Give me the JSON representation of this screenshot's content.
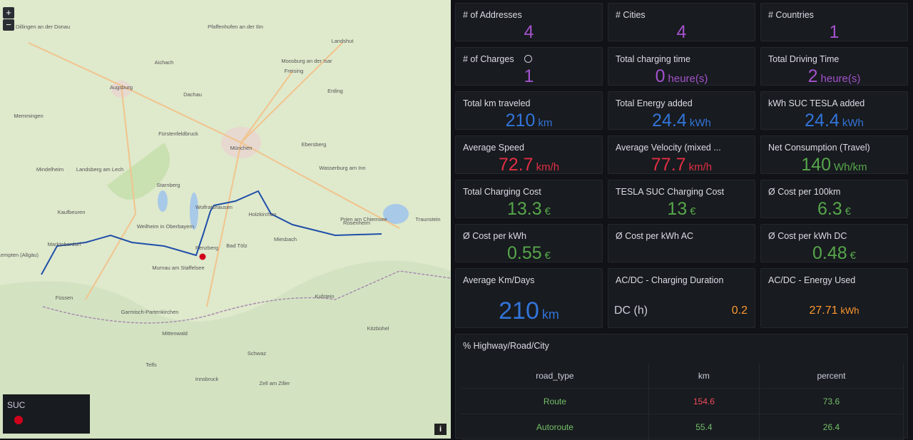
{
  "map": {
    "zoom_in": "+",
    "zoom_out": "−",
    "legend_title": "SUC",
    "info": "i",
    "labels": [
      "Dillingen an der Donau",
      "Augsburg",
      "Aichach",
      "Pfaffenhofen an der Ilm",
      "Landshut",
      "Moosburg an der Isar",
      "Freising",
      "Erding",
      "Dachau",
      "Fürstenfeldbruck",
      "München",
      "Ebersberg",
      "Wasserburg am Inn",
      "Mindelheim",
      "Landsberg am Lech",
      "Kaufbeuren",
      "Marktoberdorf",
      "Starnberg",
      "Weilheim in Oberbayern",
      "Wolfratshausen",
      "Holzkirchen",
      "Rosenheim",
      "Prien am Chiemsee",
      "Bad Tölz",
      "Miesbach",
      "Penzberg",
      "Kempten (Allgäu)",
      "Füssen",
      "Murnau am Staffelsee",
      "Garmisch-Partenkirchen",
      "Mittenwald",
      "Kufstein",
      "Innsbruck",
      "Schwaz",
      "Telfs",
      "Zell am Ziller",
      "Kitzbühel",
      "Memmingen",
      "Traunstein"
    ]
  },
  "stats": [
    {
      "title": "# of Addresses",
      "value": 4,
      "color": "#a352cc"
    },
    {
      "title": "# Cities",
      "value": 4,
      "color": "#a352cc"
    },
    {
      "title": "# Countries",
      "value": 1,
      "color": "#a352cc"
    },
    {
      "title": "# of Charges",
      "value": 1,
      "color": "#a352cc"
    },
    {
      "title": "Total charging time",
      "value": 0,
      "unit": "heure(s)",
      "color": "#a352cc"
    },
    {
      "title": "Total Driving Time",
      "value": 2,
      "unit": "heure(s)",
      "color": "#a352cc"
    },
    {
      "title": "Total km traveled",
      "value": 210,
      "unit": "km",
      "color": "#3274d9"
    },
    {
      "title": "Total Energy added",
      "value": 24.4,
      "unit": "kWh",
      "color": "#3274d9"
    },
    {
      "title": "kWh SUC TESLA added",
      "value": 24.4,
      "unit": "kWh",
      "color": "#3274d9"
    },
    {
      "title": "Average Speed",
      "value": 72.7,
      "unit": "km/h",
      "color": "#e02f44"
    },
    {
      "title": "Average Velocity (mixed ...",
      "value": 77.7,
      "unit": "km/h",
      "color": "#e02f44"
    },
    {
      "title": "Net Consumption (Travel)",
      "value": 140,
      "unit": "Wh/km",
      "color": "#56a64b"
    },
    {
      "title": "Total Charging Cost",
      "value": 13.3,
      "unit": "€",
      "color": "#56a64b"
    },
    {
      "title": "TESLA SUC Charging Cost",
      "value": 13,
      "unit": "€",
      "color": "#56a64b"
    },
    {
      "title": "Ø Cost per 100km",
      "value": 6.3,
      "unit": "€",
      "color": "#56a64b"
    },
    {
      "title": "Ø Cost per kWh",
      "value": 0.55,
      "unit": "€",
      "color": "#56a64b"
    },
    {
      "title": "Ø Cost per kWh AC"
    },
    {
      "title": "Ø Cost per kWh DC",
      "value": 0.48,
      "unit": "€",
      "color": "#56a64b"
    },
    {
      "title": "Average Km/Days",
      "value": 210,
      "unit": "km",
      "color": "#3274d9"
    },
    {
      "title": "AC/DC - Charging Duration",
      "label": "DC (h)",
      "value": 0.2,
      "color": "#ff9830"
    },
    {
      "title": "AC/DC - Energy Used",
      "value": 27.71,
      "unit": "kWh",
      "color": "#ff9830"
    }
  ],
  "table": {
    "title": "% Highway/Road/City",
    "columns": [
      "road_type",
      "km",
      "percent"
    ],
    "rows": [
      [
        "Route",
        154.6,
        73.6
      ],
      [
        "Autoroute",
        55.4,
        26.4
      ]
    ]
  }
}
